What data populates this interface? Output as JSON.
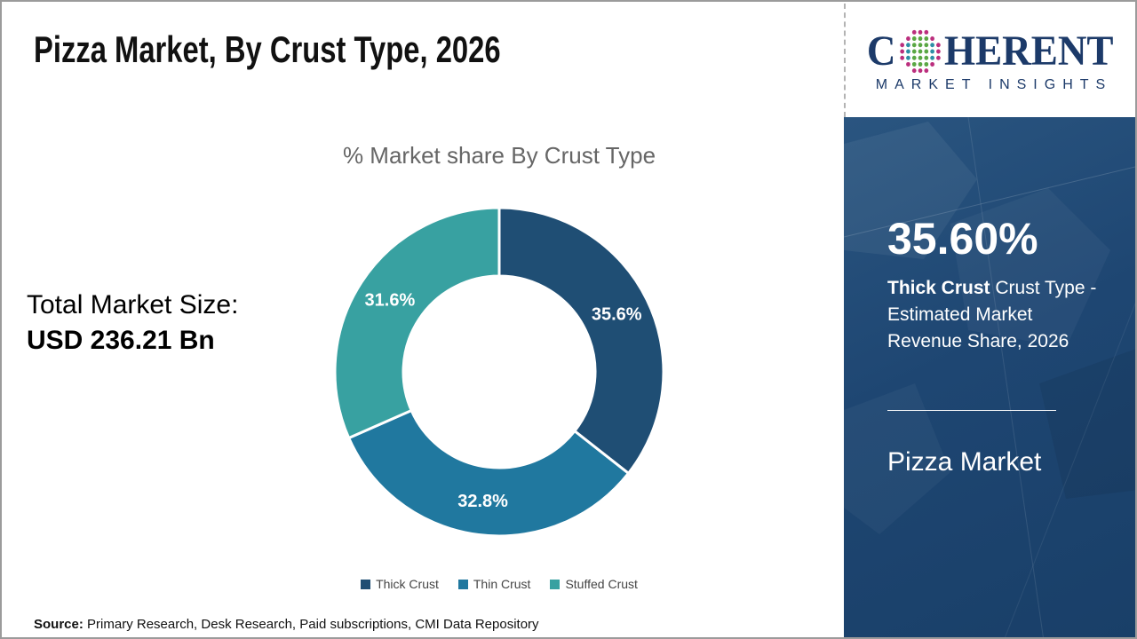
{
  "header": {
    "title": "Pizza Market, By Crust Type, 2026"
  },
  "logo": {
    "brand_first": "C",
    "brand_rest": "HERENT",
    "tagline": "MARKET INSIGHTS",
    "navy": "#1c3a69",
    "dot_green": "#5aa744",
    "dot_teal": "#2d8ea6",
    "dot_magenta": "#bb2e7d"
  },
  "left_panel": {
    "total_label": "Total Market Size:",
    "total_value": "USD 236.21 Bn"
  },
  "chart_data": {
    "type": "pie",
    "donut": true,
    "title": "% Market share By Crust Type",
    "categories": [
      "Thick Crust",
      "Thin Crust",
      "Stuffed Crust"
    ],
    "values": [
      35.6,
      32.8,
      31.6
    ],
    "labels": [
      "35.6%",
      "32.8%",
      "31.6%"
    ],
    "colors": [
      "#1f4e74",
      "#20789f",
      "#38a1a1"
    ],
    "start_angle_deg": 0,
    "direction": "clockwise",
    "legend_position": "bottom",
    "outer_radius_px": 185,
    "inner_radius_px": 108
  },
  "sidebar": {
    "stat_value": "35.60%",
    "stat_highlight": "Thick Crust",
    "stat_text": " Crust Type - Estimated Market Revenue Share, 2026",
    "market_name": "Pizza Market",
    "background": "#1e4672"
  },
  "footer": {
    "source_label": "Source:",
    "source_text": " Primary Research, Desk Research, Paid subscriptions, CMI Data Repository"
  }
}
